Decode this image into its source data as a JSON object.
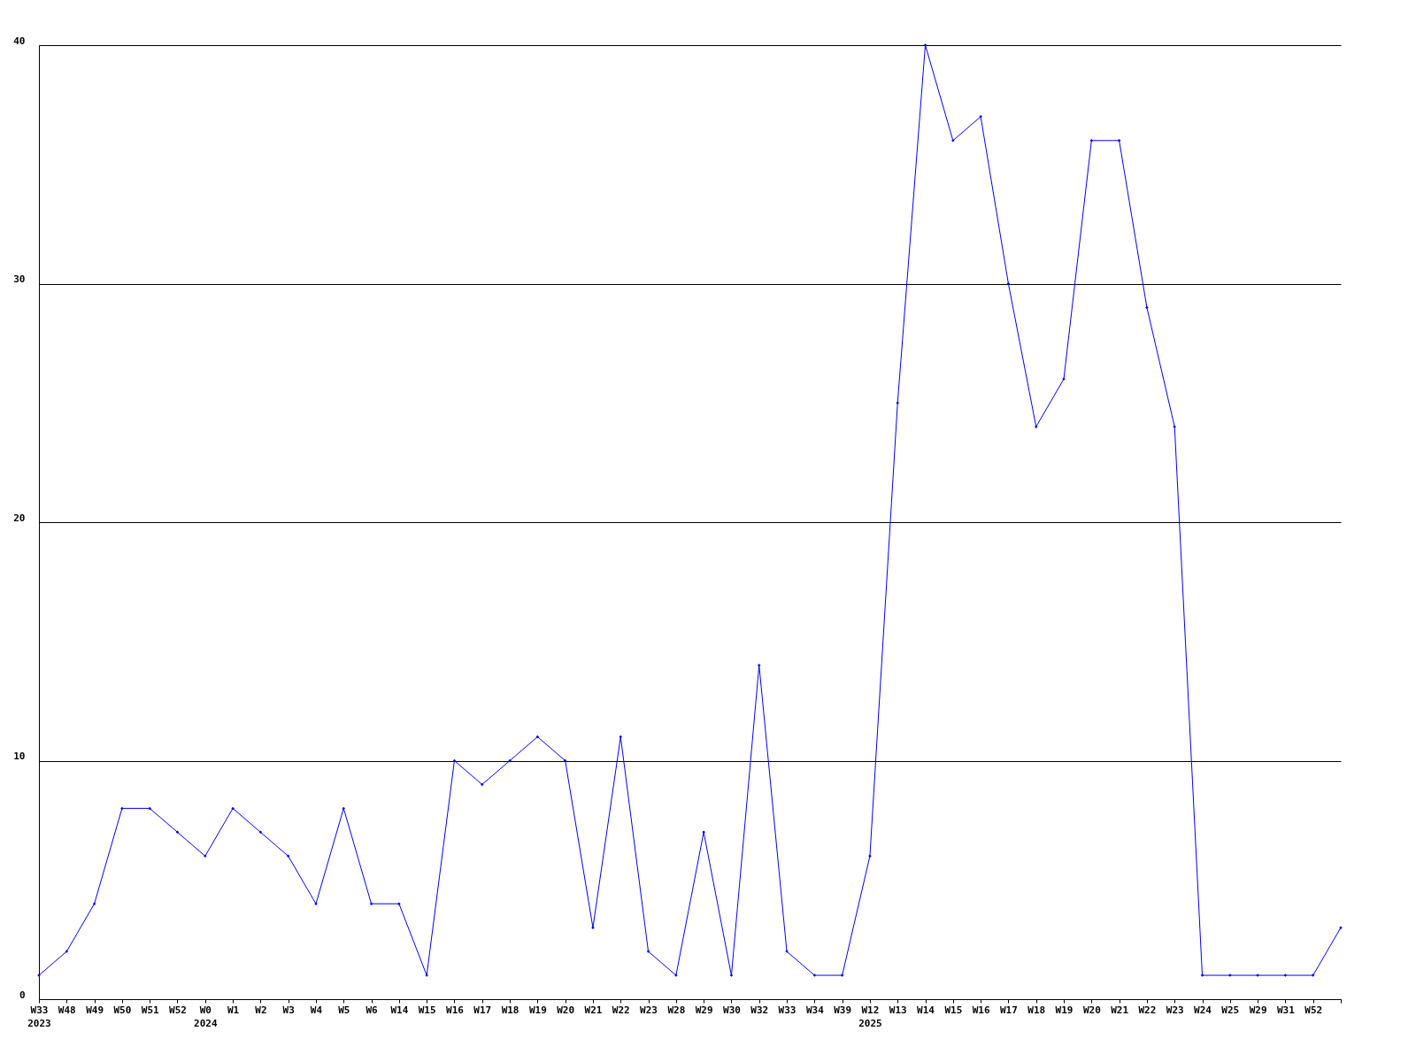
{
  "chart_data": {
    "type": "line",
    "categories": [
      "W33\n2023",
      "W48",
      "W49",
      "W50",
      "W51",
      "W52",
      "W0\n2024",
      "W1",
      "W2",
      "W3",
      "W4",
      "W5",
      "W6",
      "W14",
      "W15",
      "W16",
      "W17",
      "W18",
      "W19",
      "W20",
      "W21",
      "W22",
      "W23",
      "W28",
      "W29",
      "W30",
      "W32",
      "W33",
      "W34",
      "W39",
      "W12\n2025",
      "W13",
      "W14",
      "W15",
      "W16",
      "W17",
      "W18",
      "W19",
      "W20",
      "W21",
      "W22",
      "W23",
      "W24",
      "W25",
      "W29",
      "W31",
      "W52",
      null
    ],
    "series": [
      {
        "color": "#0000ff",
        "values": [
          1,
          2,
          4,
          8,
          8,
          7,
          6,
          8,
          7,
          6,
          4,
          8,
          4,
          4,
          1,
          10,
          9,
          10,
          11,
          10,
          3,
          11,
          2,
          1,
          7,
          1,
          14,
          2,
          1,
          1,
          6,
          25,
          40,
          36,
          37,
          30,
          24,
          26,
          36,
          36,
          29,
          24,
          1,
          1,
          1,
          1,
          1,
          3
        ]
      }
    ],
    "ylim": [
      0,
      40
    ],
    "yticks": [
      0,
      10,
      20,
      30,
      40
    ],
    "grid": "y",
    "marker": "diamond",
    "line_style": "solid"
  }
}
